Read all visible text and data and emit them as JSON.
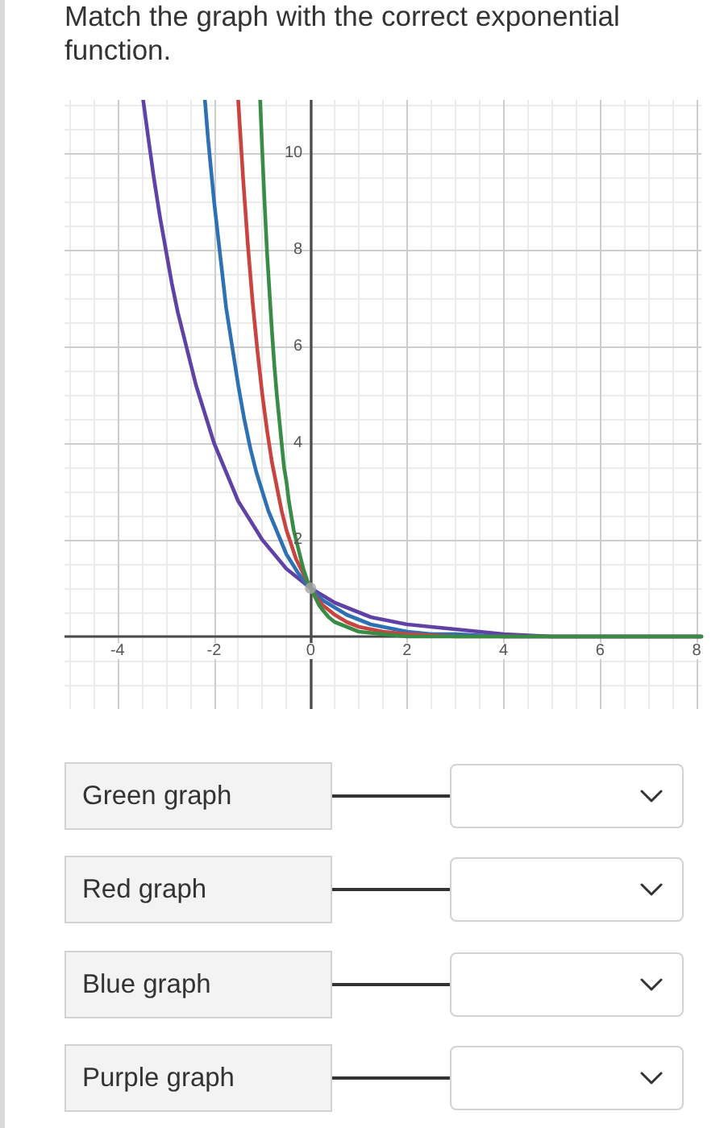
{
  "chart_data": {
    "type": "line",
    "title": "Match the graph with the correct exponential function.",
    "annotations": [
      "Green graph",
      "Red graph",
      "Blue graph",
      "Purple graph"
    ],
    "xlim": [
      -5.1,
      8.1
    ],
    "ylim": [
      -1.5,
      11.1
    ],
    "xticks": [
      {
        "value": -5,
        "label": null
      },
      {
        "value": -4.5,
        "label": null
      },
      -4,
      {
        "value": -3.5,
        "label": null
      },
      {
        "value": -3,
        "label": null
      },
      {
        "value": -2.5,
        "label": null
      },
      -2,
      {
        "value": -1.5,
        "label": null
      },
      {
        "value": -1,
        "label": null
      },
      {
        "value": -0.5,
        "label": null
      },
      0,
      {
        "value": 0.5,
        "label": null
      },
      {
        "value": 1,
        "label": null
      },
      {
        "value": 1.5,
        "label": null
      },
      2,
      {
        "value": 2.5,
        "label": null
      },
      {
        "value": 3,
        "label": null
      },
      {
        "value": 3.5,
        "label": null
      },
      4,
      {
        "value": 4.5,
        "label": null
      },
      {
        "value": 5,
        "label": null
      },
      {
        "value": 5.5,
        "label": null
      },
      6,
      {
        "value": 6.5,
        "label": null
      },
      {
        "value": 7,
        "label": null
      },
      {
        "value": 7.5,
        "label": null
      },
      8
    ],
    "yticks": [
      {
        "value": -1,
        "label": null
      },
      {
        "value": -0.5,
        "label": null
      },
      {
        "value": 0,
        "label": null
      },
      {
        "value": 0.5,
        "label": null
      },
      {
        "value": 1,
        "label": null
      },
      {
        "value": 1.5,
        "label": null
      },
      2,
      {
        "value": 2.5,
        "label": null
      },
      {
        "value": 3,
        "label": null
      },
      {
        "value": 3.5,
        "label": null
      },
      4,
      {
        "value": 4.5,
        "label": null
      },
      {
        "value": 5,
        "label": null
      },
      {
        "value": 5.5,
        "label": null
      },
      6,
      {
        "value": 6.5,
        "label": null
      },
      {
        "value": 7,
        "label": null
      },
      {
        "value": 7.5,
        "label": null
      },
      8,
      {
        "value": 8.5,
        "label": null
      },
      {
        "value": 9,
        "label": null
      },
      {
        "value": 9.5,
        "label": null
      },
      10,
      {
        "value": 10.5,
        "label": null
      },
      {
        "value": 11,
        "label": null
      }
    ],
    "grid": true,
    "marker": "none",
    "line_style": "solid",
    "series": [
      {
        "color": "#6042a6",
        "x": [
          -3.47,
          -3.375,
          -3.25,
          -3.125,
          -3,
          -2.875,
          -2.75,
          -2.625,
          -2.5,
          -2.375,
          -2.25,
          -2.125,
          -2,
          -1.875,
          -1.75,
          -1.625,
          -1.5,
          -1.375,
          -1.25,
          -1.125,
          -1,
          -0.75,
          -0.5,
          -0.25,
          0,
          0.25,
          0.5,
          0.75,
          1,
          1.25,
          1.5,
          1.75,
          2,
          2.5,
          3,
          3.5,
          4,
          5,
          8.1
        ],
        "values": [
          11.1,
          10.4,
          9.5,
          8.7,
          8,
          7.3,
          6.7,
          6.2,
          5.7,
          5.2,
          4.8,
          4.4,
          4,
          3.7,
          3.4,
          3.1,
          2.8,
          2.6,
          2.4,
          2.2,
          2,
          1.7,
          1.4,
          1.2,
          1,
          0.85,
          0.7,
          0.6,
          0.5,
          0.4,
          0.35,
          0.3,
          0.25,
          0.2,
          0.15,
          0.1,
          0.05,
          0,
          0
        ]
      },
      {
        "color": "#2d70b3",
        "x": [
          -2.19,
          -2.125,
          -2,
          -1.875,
          -1.75,
          -1.625,
          -1.5,
          -1.375,
          -1.25,
          -1.125,
          -1,
          -0.875,
          -0.75,
          -0.625,
          -0.5,
          -0.375,
          -0.25,
          -0.125,
          0,
          0.25,
          0.5,
          0.75,
          1,
          1.25,
          1.5,
          2,
          2.5,
          3,
          4,
          8.1
        ],
        "values": [
          11.1,
          10.3,
          9,
          7.9,
          6.8,
          6,
          5.2,
          4.5,
          3.9,
          3.4,
          3,
          2.6,
          2.3,
          2,
          1.7,
          1.5,
          1.3,
          1.15,
          1,
          0.75,
          0.6,
          0.45,
          0.35,
          0.25,
          0.2,
          0.1,
          0.05,
          0.05,
          0,
          0
        ]
      },
      {
        "color": "#c74440",
        "x": [
          -1.5,
          -1.4,
          -1.3,
          -1.2,
          -1.1,
          -1,
          -0.9,
          -0.8,
          -0.7,
          -0.6,
          -0.5,
          -0.4,
          -0.3,
          -0.2,
          -0.1,
          0,
          0.125,
          0.25,
          0.375,
          0.5,
          0.75,
          1,
          1.25,
          1.5,
          2,
          3,
          8.1
        ],
        "values": [
          11.1,
          9.5,
          8.1,
          6.9,
          5.9,
          5,
          4.25,
          3.6,
          3.1,
          2.6,
          2.2,
          1.9,
          1.6,
          1.4,
          1.2,
          1,
          0.8,
          0.65,
          0.55,
          0.45,
          0.3,
          0.2,
          0.15,
          0.1,
          0.05,
          0,
          0
        ]
      },
      {
        "color": "#388c46",
        "x": [
          -1.045,
          -1,
          -0.95,
          -0.9,
          -0.85,
          -0.8,
          -0.75,
          -0.7,
          -0.65,
          -0.6,
          -0.55,
          -0.5,
          -0.45,
          -0.4,
          -0.35,
          -0.3,
          -0.25,
          -0.2,
          -0.15,
          -0.1,
          -0.05,
          0,
          0.05,
          0.1,
          0.175,
          0.25,
          0.375,
          0.5,
          0.75,
          1,
          1.5,
          2,
          8.1
        ],
        "values": [
          11.1,
          10,
          8.9,
          7.9,
          7.1,
          6.3,
          5.6,
          5,
          4.5,
          4,
          3.5,
          3.2,
          2.8,
          2.5,
          2.2,
          2,
          1.8,
          1.6,
          1.4,
          1.25,
          1.1,
          1,
          0.9,
          0.8,
          0.65,
          0.55,
          0.4,
          0.3,
          0.2,
          0.1,
          0.05,
          0,
          0
        ]
      },
      {
        "type": "scatter",
        "marker": "circle",
        "color": "#a6a6a6",
        "x": [
          0
        ],
        "values": [
          1
        ]
      }
    ]
  }
}
